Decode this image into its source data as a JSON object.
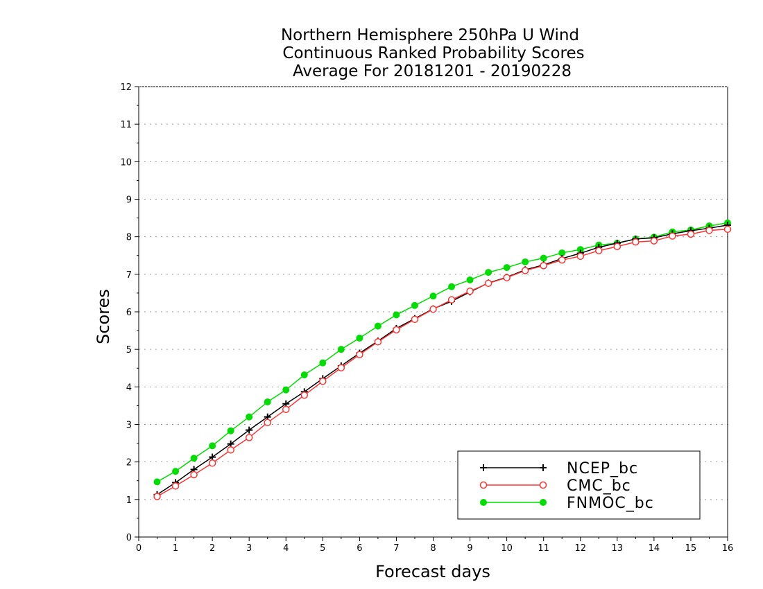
{
  "chart_data": {
    "type": "line",
    "title": [
      "Northern Hemisphere 250hPa U Wind",
      "Continuous Ranked Probability Scores",
      "Average For 20181201 - 20190228"
    ],
    "xlabel": "Forecast days",
    "ylabel": "Scores",
    "xlim": [
      0,
      16
    ],
    "ylim": [
      0,
      12
    ],
    "xticks": [
      "0",
      "1",
      "2",
      "3",
      "4",
      "5",
      "6",
      "7",
      "8",
      "9",
      "10",
      "11",
      "12",
      "13",
      "14",
      "15",
      "16"
    ],
    "yticks": [
      "0",
      "1",
      "2",
      "3",
      "4",
      "5",
      "6",
      "7",
      "8",
      "9",
      "10",
      "11",
      "12"
    ],
    "grid": true,
    "legend_position": "bottom-right",
    "x": [
      0.5,
      1,
      1.5,
      2,
      2.5,
      3,
      3.5,
      4,
      4.5,
      5,
      5.5,
      6,
      6.5,
      7,
      7.5,
      8,
      8.5,
      9,
      9.5,
      10,
      10.5,
      11,
      11.5,
      12,
      12.5,
      13,
      13.5,
      14,
      14.5,
      15,
      15.5,
      16
    ],
    "series": [
      {
        "name": "NCEP_bc",
        "color": "#000000",
        "marker": "plus",
        "values": [
          1.13,
          1.45,
          1.8,
          2.13,
          2.48,
          2.85,
          3.2,
          3.55,
          3.87,
          4.22,
          4.56,
          4.9,
          5.22,
          5.56,
          5.82,
          6.08,
          6.28,
          6.53,
          6.77,
          6.92,
          7.12,
          7.25,
          7.42,
          7.56,
          7.72,
          7.83,
          7.94,
          7.97,
          8.08,
          8.16,
          8.23,
          8.31
        ]
      },
      {
        "name": "CMC_bc",
        "color": "#ff3333",
        "marker": "open-circle",
        "values": [
          1.08,
          1.36,
          1.66,
          1.97,
          2.32,
          2.65,
          3.05,
          3.4,
          3.78,
          4.15,
          4.51,
          4.86,
          5.2,
          5.52,
          5.8,
          6.07,
          6.32,
          6.55,
          6.76,
          6.91,
          7.1,
          7.23,
          7.38,
          7.48,
          7.63,
          7.74,
          7.86,
          7.89,
          8.02,
          8.07,
          8.17,
          8.2
        ]
      },
      {
        "name": "FNMOC_bc",
        "color": "#00dd00",
        "marker": "filled-circle",
        "values": [
          1.47,
          1.75,
          2.1,
          2.43,
          2.83,
          3.2,
          3.6,
          3.92,
          4.32,
          4.64,
          5.0,
          5.3,
          5.62,
          5.92,
          6.17,
          6.42,
          6.67,
          6.85,
          7.05,
          7.18,
          7.33,
          7.43,
          7.57,
          7.66,
          7.78,
          7.83,
          7.94,
          7.99,
          8.13,
          8.18,
          8.29,
          8.37
        ]
      }
    ]
  }
}
